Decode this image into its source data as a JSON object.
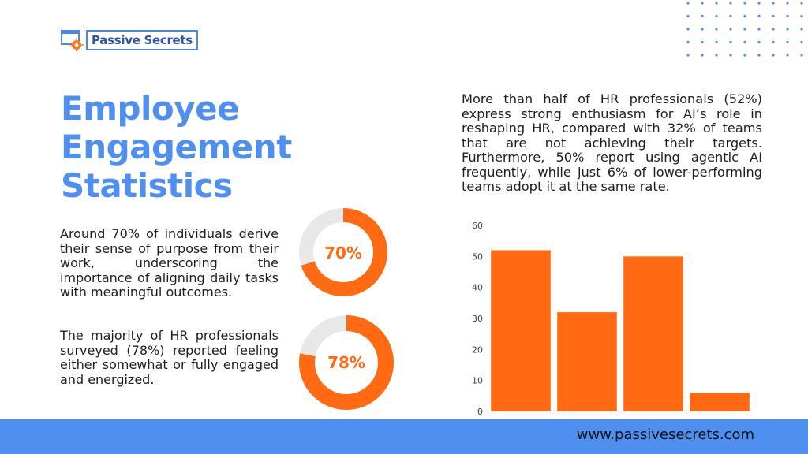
{
  "brand": {
    "name": "Passive Secrets"
  },
  "title_lines": [
    "Employee",
    "Engagement",
    "Statistics"
  ],
  "paragraphs": {
    "p1": "Around 70% of individuals derive their sense of purpose from their work, underscoring the importance of aligning daily tasks with meaningful outcomes.",
    "p2": "The majority of HR professionals surveyed (78%) reported feeling either somewhat or fully engaged and energized.",
    "p3": "More than half of HR professionals (52%) express strong enthusiasm for AI’s role in reshaping HR, compared with 32% of teams that are not achieving their targets. Furthermore, 50% report using agentic AI frequently, while just 6% of lower-performing teams adopt it at the same rate."
  },
  "donuts": [
    {
      "label": "70%",
      "value": 70
    },
    {
      "label": "78%",
      "value": 78
    }
  ],
  "footer": {
    "url": "www.passivesecrets.com"
  },
  "colors": {
    "accent": "#4f8ff0",
    "orange": "#ff6a13",
    "grey": "#e8e8e8"
  },
  "chart_data": {
    "type": "bar",
    "categories": [
      "",
      "",
      "",
      ""
    ],
    "values": [
      52,
      32,
      50,
      6
    ],
    "ylim": [
      0,
      60
    ],
    "yticks": [
      0,
      10,
      20,
      30,
      40,
      50,
      60
    ],
    "title": "",
    "xlabel": "",
    "ylabel": "",
    "grid": false
  }
}
